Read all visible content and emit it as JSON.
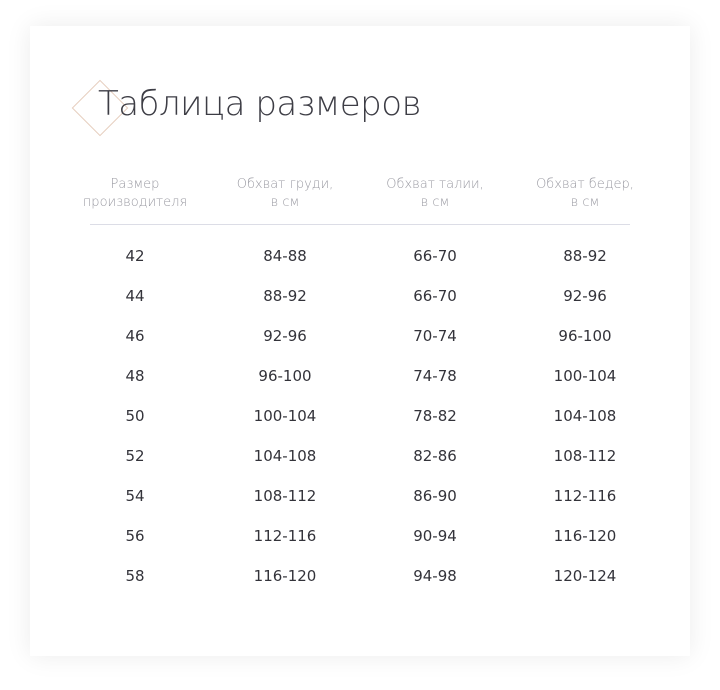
{
  "title": "Таблица размеров",
  "headers": [
    {
      "line1": "Размер",
      "line2": "производителя"
    },
    {
      "line1": "Обхват груди,",
      "line2": "в см"
    },
    {
      "line1": "Обхват талии,",
      "line2": "в см"
    },
    {
      "line1": "Обхват бедер,",
      "line2": "в см"
    }
  ],
  "rows": [
    [
      "42",
      "84-88",
      "66-70",
      "88-92"
    ],
    [
      "44",
      "88-92",
      "66-70",
      "92-96"
    ],
    [
      "46",
      "92-96",
      "70-74",
      "96-100"
    ],
    [
      "48",
      "96-100",
      "74-78",
      "100-104"
    ],
    [
      "50",
      "100-104",
      "78-82",
      "104-108"
    ],
    [
      "52",
      "104-108",
      "82-86",
      "108-112"
    ],
    [
      "54",
      "108-112",
      "86-90",
      "112-116"
    ],
    [
      "56",
      "112-116",
      "90-94",
      "116-120"
    ],
    [
      "58",
      "116-120",
      "94-98",
      "120-124"
    ]
  ],
  "colors": {
    "accent": "#e6cdbd",
    "text": "#33333a",
    "header": "#9a9aa2"
  }
}
